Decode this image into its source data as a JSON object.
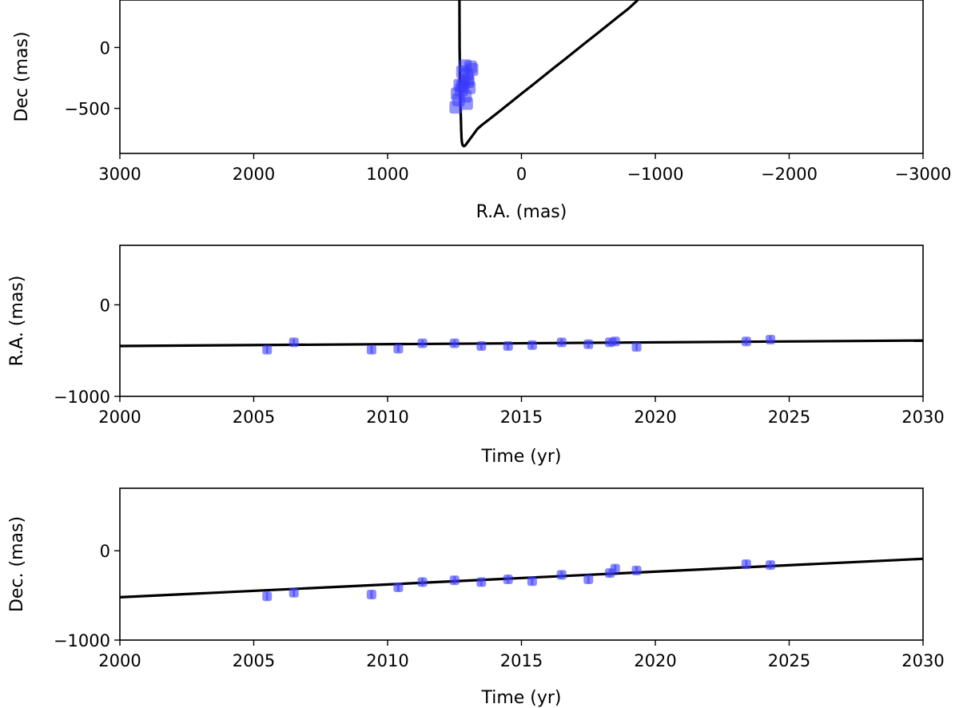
{
  "chart_data": [
    {
      "type": "scatter",
      "xlabel": "R.A. (mas)",
      "ylabel": "Dec (mas)",
      "xlim": [
        3000,
        -3000
      ],
      "ylim": [
        -870,
        390
      ],
      "xticks": [
        3000,
        2000,
        1000,
        0,
        -1000,
        -2000,
        -3000
      ],
      "xtick_labels": [
        "3000",
        "2000",
        "1000",
        "0",
        "−1000",
        "−2000",
        "−3000"
      ],
      "yticks": [
        0,
        -500
      ],
      "ytick_labels": [
        "0",
        "−500"
      ],
      "marker_color": "#3b3bff",
      "line_color": "#000000",
      "series": [
        {
          "kind": "points",
          "x": [
            380,
            420,
            370,
            440,
            410,
            400,
            430,
            460,
            390,
            450,
            480,
            420,
            440,
            400,
            410,
            470,
            490
          ],
          "y": [
            -160,
            -150,
            -180,
            -200,
            -220,
            -260,
            -290,
            -310,
            -330,
            -350,
            -380,
            -400,
            -320,
            -280,
            -460,
            -430,
            -490
          ]
        },
        {
          "kind": "curve",
          "x": [
            -870,
            -800,
            -720,
            -640,
            -560,
            -480,
            -400,
            -320,
            -240,
            -160,
            -80,
            0,
            80,
            160,
            240,
            300,
            330,
            350,
            370,
            390,
            410,
            420,
            430,
            440,
            445,
            448,
            450,
            452,
            455,
            458,
            460,
            462,
            463
          ],
          "y": [
            390,
            320,
            250,
            180,
            110,
            40,
            -30,
            -100,
            -170,
            -240,
            -310,
            -380,
            -450,
            -520,
            -590,
            -640,
            -670,
            -700,
            -730,
            -760,
            -790,
            -805,
            -810,
            -800,
            -780,
            -740,
            -680,
            -600,
            -500,
            -380,
            -200,
            0,
            390
          ]
        }
      ]
    },
    {
      "type": "scatter",
      "xlabel": "Time (yr)",
      "ylabel": "R.A. (mas)",
      "xlim": [
        2000,
        2030
      ],
      "ylim": [
        -1000,
        650
      ],
      "xticks": [
        2000,
        2005,
        2010,
        2015,
        2020,
        2025,
        2030
      ],
      "xtick_labels": [
        "2000",
        "2005",
        "2010",
        "2015",
        "2020",
        "2025",
        "2030"
      ],
      "yticks": [
        0,
        -1000
      ],
      "ytick_labels": [
        "0",
        "−1000"
      ],
      "marker_color": "#3b3bff",
      "line_color": "#000000",
      "series": [
        {
          "kind": "points",
          "x": [
            2005.5,
            2006.5,
            2009.4,
            2010.4,
            2011.3,
            2012.5,
            2013.5,
            2014.5,
            2015.4,
            2016.5,
            2017.5,
            2018.3,
            2018.5,
            2019.3,
            2023.4,
            2024.3
          ],
          "y": [
            -490,
            -410,
            -490,
            -480,
            -420,
            -420,
            -450,
            -450,
            -440,
            -410,
            -430,
            -410,
            -400,
            -460,
            -400,
            -380
          ],
          "yerr": [
            40,
            40,
            40,
            40,
            40,
            40,
            40,
            40,
            40,
            40,
            40,
            40,
            40,
            40,
            40,
            40
          ]
        },
        {
          "kind": "line",
          "x": [
            2000,
            2030
          ],
          "y": [
            -450,
            -390
          ]
        }
      ]
    },
    {
      "type": "scatter",
      "xlabel": "Time (yr)",
      "ylabel": "Dec. (mas)",
      "xlim": [
        2000,
        2030
      ],
      "ylim": [
        -1000,
        700
      ],
      "xticks": [
        2000,
        2005,
        2010,
        2015,
        2020,
        2025,
        2030
      ],
      "xtick_labels": [
        "2000",
        "2005",
        "2010",
        "2015",
        "2020",
        "2025",
        "2030"
      ],
      "yticks": [
        0,
        -1000
      ],
      "ytick_labels": [
        "0",
        "−1000"
      ],
      "marker_color": "#3b3bff",
      "line_color": "#000000",
      "series": [
        {
          "kind": "points",
          "x": [
            2005.5,
            2006.5,
            2009.4,
            2010.4,
            2011.3,
            2012.5,
            2013.5,
            2014.5,
            2015.4,
            2016.5,
            2017.5,
            2018.3,
            2018.5,
            2019.3,
            2023.4,
            2024.3
          ],
          "y": [
            -510,
            -470,
            -490,
            -410,
            -350,
            -330,
            -350,
            -320,
            -340,
            -270,
            -320,
            -250,
            -200,
            -220,
            -150,
            -160
          ],
          "yerr": [
            45,
            45,
            45,
            45,
            45,
            45,
            45,
            45,
            45,
            45,
            45,
            45,
            45,
            45,
            45,
            45
          ]
        },
        {
          "kind": "line",
          "x": [
            2000,
            2030
          ],
          "y": [
            -520,
            -90
          ]
        }
      ]
    }
  ]
}
